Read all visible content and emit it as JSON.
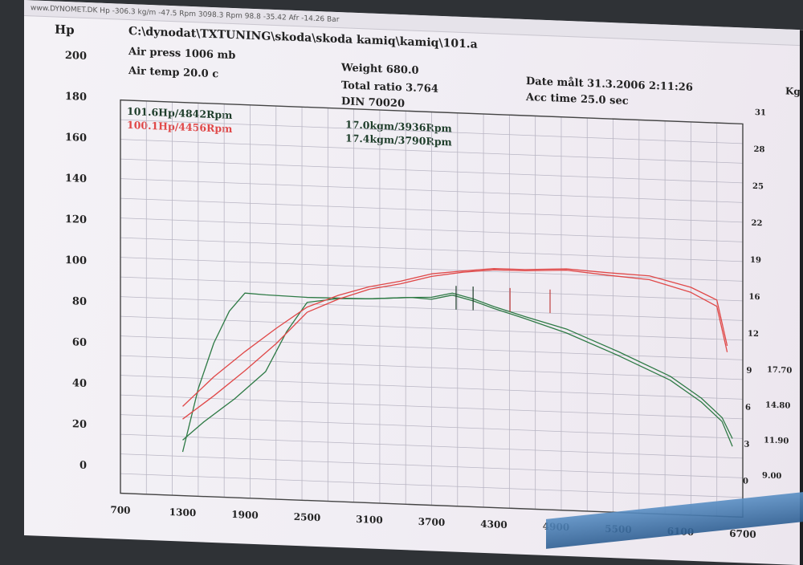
{
  "window_title": "www.DYNOMET.DK Hp -306.3 kg/m -47.5 Rpm 3098.3 Rpm 98.8 -35.42 Afr -14.26 Bar",
  "header": {
    "file_path": "C:\\dynodat\\TXTUNING\\skoda\\skoda kamiq\\kamiq\\101.a",
    "air_press": "Air press  1006 mb",
    "air_temp": "Air temp  20.0 c",
    "weight": "Weight   680.0",
    "total_ratio": "Total ratio 3.764",
    "din": "DIN 70020",
    "date": "Date målt 31.3.2006 2:11:26",
    "acc_time": "Acc time  25.0 sec"
  },
  "peaks": {
    "hp_green": "101.6Hp/4842Rpm",
    "hp_red": "100.1Hp/4456Rpm",
    "torque_green": "17.0kgm/3936Rpm",
    "torque_red": "17.4kgm/3790Rpm"
  },
  "colors": {
    "green": "#2e7a45",
    "red": "#e04848",
    "grid": "#b9b6c4",
    "frame": "#444444"
  },
  "chart_data": {
    "type": "line",
    "ylabel": "Hp",
    "y2label": "Kg/",
    "ylim": [
      0,
      200
    ],
    "y_ticks": [
      "200",
      "180",
      "160",
      "140",
      "120",
      "100",
      "80",
      "60",
      "40",
      "20",
      "0"
    ],
    "y2_ticks": [
      "31",
      "28",
      "25",
      "22",
      "19",
      "16",
      "12",
      "9",
      "6",
      "3",
      "0"
    ],
    "y2_extra_ticks": [
      "17.70",
      "14.80",
      "11.90",
      "9.00"
    ],
    "xlim": [
      700,
      6700
    ],
    "x_ticks": [
      "700",
      "1300",
      "1900",
      "2500",
      "3100",
      "3700",
      "4300",
      "4900",
      "5500",
      "6100",
      "6700"
    ],
    "series": [
      {
        "color": "green",
        "kind": "power",
        "x": [
          1300,
          1450,
          1600,
          1750,
          1900,
          2100,
          2500,
          3100,
          3500,
          3700,
          3900,
          4100,
          4300,
          4600,
          5000,
          5500,
          6000,
          6300,
          6500,
          6600
        ],
        "y": [
          22,
          55,
          78,
          95,
          104,
          104,
          103,
          104,
          105,
          105,
          107,
          105,
          101,
          97,
          90,
          80,
          68,
          58,
          48,
          36
        ]
      },
      {
        "color": "green",
        "kind": "power",
        "x": [
          1300,
          1500,
          1800,
          2100,
          2300,
          2500,
          2800,
          3100,
          3500,
          3700,
          3900,
          4100,
          4300,
          4600,
          5000,
          5500,
          6000,
          6300,
          6500,
          6600
        ],
        "y": [
          28,
          38,
          50,
          65,
          85,
          101,
          103,
          104,
          105,
          106,
          108,
          106,
          102,
          98,
          92,
          82,
          70,
          60,
          50,
          40
        ]
      },
      {
        "color": "red",
        "kind": "torque",
        "x": [
          1300,
          1600,
          1900,
          2200,
          2500,
          2800,
          3100,
          3400,
          3700,
          4000,
          4300,
          4600,
          5000,
          5400,
          5800,
          6200,
          6450,
          6550
        ],
        "y": [
          7,
          9.5,
          11.5,
          13.5,
          15.2,
          16.3,
          17.0,
          17.6,
          18.2,
          18.6,
          18.8,
          18.9,
          19.0,
          18.9,
          18.7,
          18.0,
          17.0,
          13.5
        ]
      },
      {
        "color": "red",
        "kind": "torque",
        "x": [
          1300,
          1600,
          1900,
          2200,
          2500,
          2800,
          3100,
          3400,
          3700,
          4000,
          4300,
          4600,
          5000,
          5400,
          5800,
          6200,
          6450,
          6550
        ],
        "y": [
          6,
          8.0,
          10.0,
          12.3,
          14.8,
          16.0,
          16.8,
          17.4,
          18.0,
          18.5,
          18.7,
          18.8,
          18.9,
          18.7,
          18.4,
          17.6,
          16.5,
          13.0
        ]
      }
    ]
  }
}
